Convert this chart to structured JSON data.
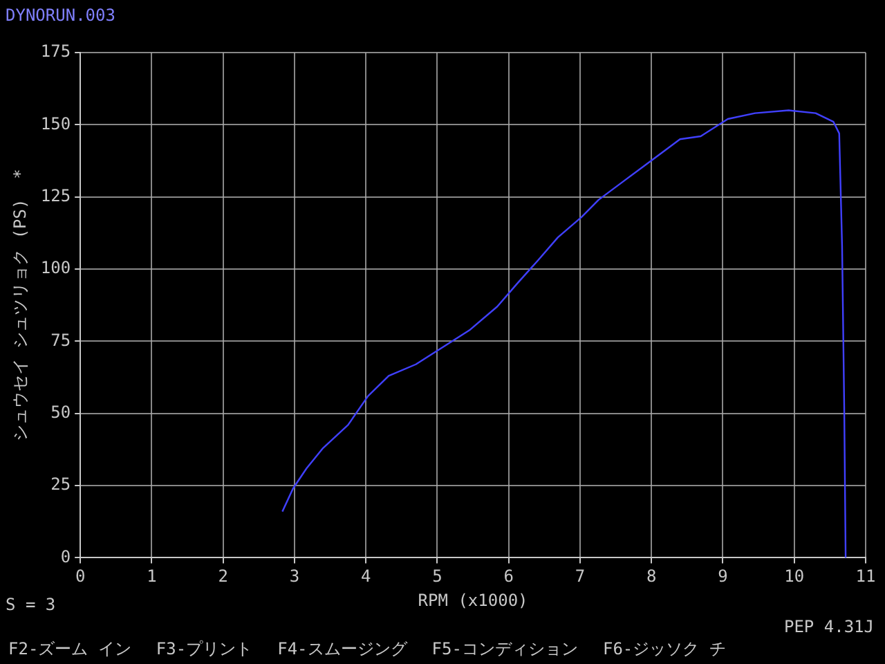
{
  "chart_data": {
    "type": "line",
    "title": "DYNORUN.003",
    "xlabel": "RPM (x1000)",
    "ylabel": "シュウセイ シュツリョク (PS)  *",
    "annotations": [
      "S = 3",
      "PEP 4.31J",
      "F2-ズーム イン",
      "F3-プリント",
      "F4-スムージング",
      "F5-コンディション",
      "F6-ジッソク チ"
    ],
    "x": [
      2.83,
      2.98,
      3.17,
      3.4,
      3.75,
      4.03,
      4.32,
      4.7,
      5.08,
      5.46,
      5.84,
      6.12,
      6.41,
      6.69,
      7.02,
      7.26,
      7.64,
      8.02,
      8.4,
      8.69,
      9.07,
      9.45,
      9.92,
      10.3,
      10.55,
      10.63,
      10.67,
      10.7,
      10.72
    ],
    "series": [
      {
        "color": "#4040ff",
        "values": [
          16,
          24,
          31,
          38,
          46,
          56,
          63,
          67,
          73,
          79,
          87,
          95,
          103,
          111,
          118,
          124,
          131,
          138,
          145,
          146,
          152,
          154,
          155,
          154,
          151,
          147,
          108,
          52,
          0
        ]
      }
    ],
    "xlim": [
      0,
      11
    ],
    "xticks": [
      0,
      1,
      2,
      3,
      4,
      5,
      6,
      7,
      8,
      9,
      10,
      11
    ],
    "ylim": [
      0,
      175
    ],
    "yticks": [
      0,
      25,
      50,
      75,
      100,
      125,
      150,
      175
    ],
    "grid": true,
    "legend": false,
    "marker": "none",
    "line_style": "solid"
  }
}
